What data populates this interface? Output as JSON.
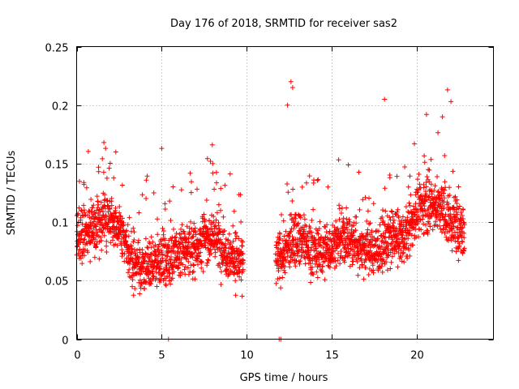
{
  "chart_data": {
    "type": "scatter",
    "title": "Day 176 of 2018, SRMTID for receiver sas2",
    "xlabel": "GPS time / hours",
    "ylabel": "SRMTID / TECUs",
    "xlim": [
      0,
      24.5
    ],
    "ylim": [
      0,
      0.25
    ],
    "x_ticks": [
      0,
      5,
      10,
      15,
      20
    ],
    "x_tick_labels": [
      "0",
      "5",
      "10",
      "15",
      "20"
    ],
    "y_ticks": [
      0,
      0.05,
      0.1,
      0.15,
      0.2,
      0.25
    ],
    "y_tick_labels": [
      "0",
      "0.05",
      "0.1",
      "0.15",
      "0.2",
      "0.25"
    ],
    "grid": true,
    "marker": "+",
    "color": "#ff0000",
    "zero_points_x": [
      5.4,
      11.9,
      12.0
    ],
    "series": [
      {
        "name": "SRMTID",
        "segments": [
          {
            "x_start": 0.0,
            "x_end": 9.8,
            "step": 0.008,
            "points": [
              {
                "x": 0.0,
                "y": 0.085
              },
              {
                "x": 0.5,
                "y": 0.09
              },
              {
                "x": 1.0,
                "y": 0.095
              },
              {
                "x": 1.5,
                "y": 0.1
              },
              {
                "x": 2.0,
                "y": 0.105
              },
              {
                "x": 2.5,
                "y": 0.095
              },
              {
                "x": 3.0,
                "y": 0.075
              },
              {
                "x": 3.5,
                "y": 0.065
              },
              {
                "x": 4.0,
                "y": 0.06
              },
              {
                "x": 4.5,
                "y": 0.065
              },
              {
                "x": 5.0,
                "y": 0.07
              },
              {
                "x": 5.5,
                "y": 0.068
              },
              {
                "x": 6.0,
                "y": 0.072
              },
              {
                "x": 6.5,
                "y": 0.078
              },
              {
                "x": 7.0,
                "y": 0.08
              },
              {
                "x": 7.5,
                "y": 0.085
              },
              {
                "x": 8.0,
                "y": 0.09
              },
              {
                "x": 8.5,
                "y": 0.08
              },
              {
                "x": 9.0,
                "y": 0.072
              },
              {
                "x": 9.5,
                "y": 0.068
              },
              {
                "x": 9.8,
                "y": 0.065
              }
            ]
          },
          {
            "x_start": 11.7,
            "x_end": 22.8,
            "step": 0.008,
            "points": [
              {
                "x": 11.7,
                "y": 0.065
              },
              {
                "x": 12.0,
                "y": 0.07
              },
              {
                "x": 12.5,
                "y": 0.08
              },
              {
                "x": 13.0,
                "y": 0.09
              },
              {
                "x": 13.5,
                "y": 0.08
              },
              {
                "x": 14.0,
                "y": 0.075
              },
              {
                "x": 14.5,
                "y": 0.075
              },
              {
                "x": 15.0,
                "y": 0.08
              },
              {
                "x": 15.5,
                "y": 0.085
              },
              {
                "x": 16.0,
                "y": 0.085
              },
              {
                "x": 16.5,
                "y": 0.08
              },
              {
                "x": 17.0,
                "y": 0.078
              },
              {
                "x": 17.5,
                "y": 0.075
              },
              {
                "x": 18.0,
                "y": 0.08
              },
              {
                "x": 18.5,
                "y": 0.085
              },
              {
                "x": 19.0,
                "y": 0.085
              },
              {
                "x": 19.5,
                "y": 0.09
              },
              {
                "x": 20.0,
                "y": 0.11
              },
              {
                "x": 20.5,
                "y": 0.115
              },
              {
                "x": 21.0,
                "y": 0.115
              },
              {
                "x": 21.5,
                "y": 0.11
              },
              {
                "x": 22.0,
                "y": 0.1
              },
              {
                "x": 22.5,
                "y": 0.095
              },
              {
                "x": 22.8,
                "y": 0.09
              }
            ]
          }
        ],
        "spikes": [
          {
            "x": 1.6,
            "y": 0.168
          },
          {
            "x": 1.7,
            "y": 0.163
          },
          {
            "x": 2.3,
            "y": 0.16
          },
          {
            "x": 5.0,
            "y": 0.163
          },
          {
            "x": 8.0,
            "y": 0.15
          },
          {
            "x": 12.6,
            "y": 0.22
          },
          {
            "x": 12.7,
            "y": 0.215
          },
          {
            "x": 12.4,
            "y": 0.2
          },
          {
            "x": 18.1,
            "y": 0.205
          },
          {
            "x": 21.8,
            "y": 0.213
          },
          {
            "x": 22.0,
            "y": 0.203
          },
          {
            "x": 21.5,
            "y": 0.19
          }
        ]
      }
    ]
  }
}
